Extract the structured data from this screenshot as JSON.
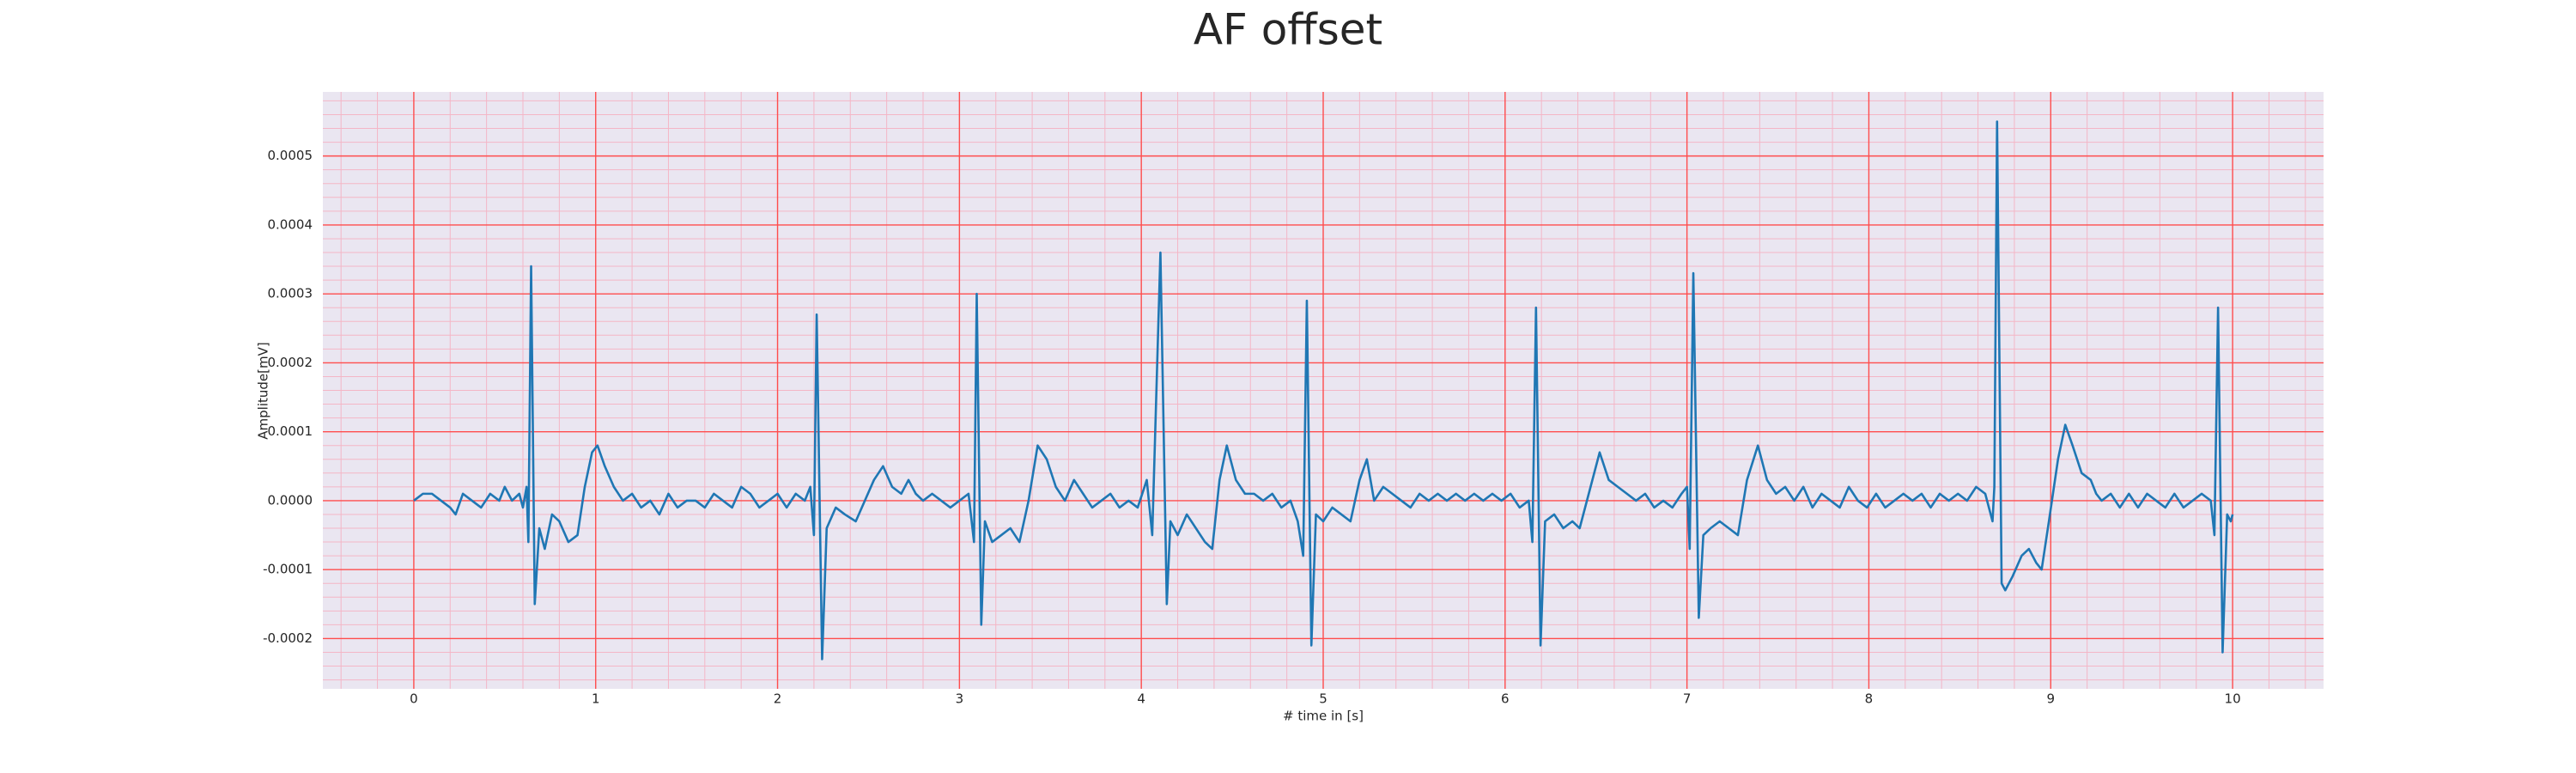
{
  "chart_data": {
    "type": "line",
    "title": "AF offset",
    "xlabel": "# time in [s]",
    "ylabel": "Amplitude[mV]",
    "grid": true,
    "minor_grid": true,
    "plot_background": "#eae6f1",
    "grid_color": "#ff4d4d",
    "minor_grid_color": "#f4b6c6",
    "xlim": [
      -0.5,
      10.5
    ],
    "ylim": [
      -0.000273,
      0.000593
    ],
    "xticks": [
      0,
      1,
      2,
      3,
      4,
      5,
      6,
      7,
      8,
      9,
      10
    ],
    "yticks": [
      {
        "value": -0.0002,
        "label": "-0.0002"
      },
      {
        "value": -0.0001,
        "label": "-0.0001"
      },
      {
        "value": 0,
        "label": "0.0000"
      },
      {
        "value": 0.0001,
        "label": "0.0001"
      },
      {
        "value": 0.0002,
        "label": "0.0002"
      },
      {
        "value": 0.0003,
        "label": "0.0003"
      },
      {
        "value": 0.0004,
        "label": "0.0004"
      },
      {
        "value": 0.0005,
        "label": "0.0005"
      }
    ],
    "xminorticks": [
      -0.4,
      -0.2,
      0.2,
      0.4,
      0.6,
      0.8,
      1.2,
      1.4,
      1.6,
      1.8,
      2.2,
      2.4,
      2.6,
      2.8,
      3.2,
      3.4,
      3.6,
      3.8,
      4.2,
      4.4,
      4.6,
      4.8,
      5.2,
      5.4,
      5.6,
      5.8,
      6.2,
      6.4,
      6.6,
      6.8,
      7.2,
      7.4,
      7.6,
      7.8,
      8.2,
      8.4,
      8.6,
      8.8,
      9.2,
      9.4,
      9.6,
      9.8,
      10.2,
      10.4
    ],
    "yminorticks": [
      -0.00026,
      -0.00024,
      -0.00022,
      -0.00018,
      -0.00016,
      -0.00014,
      -0.00012,
      -8e-05,
      -6e-05,
      -4e-05,
      -2e-05,
      2e-05,
      4e-05,
      6e-05,
      8e-05,
      0.00012,
      0.00014,
      0.00016,
      0.00018,
      0.00022,
      0.00024,
      0.00026,
      0.00028,
      0.00032,
      0.00034,
      0.00036,
      0.00038,
      0.00042,
      0.00044,
      0.00046,
      0.00048,
      0.00052,
      0.00054,
      0.00056,
      0.00058
    ],
    "x": [
      0,
      0.05,
      0.1,
      0.15,
      0.2,
      0.23,
      0.27,
      0.32,
      0.37,
      0.42,
      0.47,
      0.5,
      0.54,
      0.58,
      0.6,
      0.62,
      0.63,
      0.645,
      0.665,
      0.69,
      0.72,
      0.76,
      0.8,
      0.85,
      0.9,
      0.94,
      0.98,
      1.01,
      1.05,
      1.1,
      1.15,
      1.2,
      1.25,
      1.3,
      1.35,
      1.4,
      1.45,
      1.5,
      1.55,
      1.6,
      1.65,
      1.7,
      1.75,
      1.8,
      1.85,
      1.9,
      1.95,
      2,
      2.05,
      2.1,
      2.15,
      2.18,
      2.2,
      2.215,
      2.245,
      2.27,
      2.32,
      2.37,
      2.43,
      2.48,
      2.53,
      2.58,
      2.63,
      2.68,
      2.72,
      2.76,
      2.8,
      2.85,
      2.9,
      2.95,
      3,
      3.05,
      3.08,
      3.095,
      3.12,
      3.14,
      3.18,
      3.23,
      3.28,
      3.33,
      3.38,
      3.43,
      3.48,
      3.53,
      3.58,
      3.63,
      3.68,
      3.73,
      3.78,
      3.83,
      3.88,
      3.93,
      3.98,
      4.03,
      4.06,
      4.105,
      4.14,
      4.16,
      4.2,
      4.25,
      4.3,
      4.35,
      4.39,
      4.43,
      4.47,
      4.52,
      4.57,
      4.62,
      4.67,
      4.72,
      4.77,
      4.82,
      4.86,
      4.89,
      4.91,
      4.935,
      4.96,
      5,
      5.05,
      5.1,
      5.15,
      5.2,
      5.24,
      5.28,
      5.33,
      5.38,
      5.43,
      5.48,
      5.53,
      5.58,
      5.63,
      5.68,
      5.73,
      5.78,
      5.83,
      5.88,
      5.93,
      5.98,
      6.03,
      6.08,
      6.13,
      6.15,
      6.17,
      6.195,
      6.22,
      6.27,
      6.32,
      6.37,
      6.41,
      6.47,
      6.52,
      6.57,
      6.62,
      6.67,
      6.72,
      6.77,
      6.82,
      6.87,
      6.92,
      6.97,
      7,
      7.015,
      7.035,
      7.065,
      7.09,
      7.13,
      7.18,
      7.23,
      7.28,
      7.33,
      7.39,
      7.44,
      7.49,
      7.54,
      7.59,
      7.64,
      7.69,
      7.74,
      7.79,
      7.84,
      7.89,
      7.94,
      7.99,
      8.04,
      8.09,
      8.14,
      8.19,
      8.24,
      8.29,
      8.34,
      8.39,
      8.44,
      8.49,
      8.54,
      8.59,
      8.64,
      8.68,
      8.69,
      8.705,
      8.73,
      8.75,
      8.79,
      8.84,
      8.88,
      8.92,
      8.95,
      8.99,
      9.04,
      9.08,
      9.12,
      9.17,
      9.22,
      9.25,
      9.28,
      9.33,
      9.38,
      9.43,
      9.48,
      9.53,
      9.58,
      9.63,
      9.68,
      9.73,
      9.78,
      9.83,
      9.88,
      9.9,
      9.92,
      9.945,
      9.97,
      9.99,
      10
    ],
    "series": [
      {
        "color": "#1f77b4",
        "values": [
          0,
          1e-05,
          1e-05,
          0,
          -1e-05,
          -2e-05,
          1e-05,
          0,
          -1e-05,
          1e-05,
          0,
          2e-05,
          0,
          1e-05,
          -1e-05,
          2e-05,
          -6e-05,
          0.00034,
          -0.00015,
          -4e-05,
          -7e-05,
          -2e-05,
          -3e-05,
          -6e-05,
          -5e-05,
          2e-05,
          7e-05,
          8e-05,
          5e-05,
          2e-05,
          0,
          1e-05,
          -1e-05,
          0,
          -2e-05,
          1e-05,
          -1e-05,
          0,
          0,
          -1e-05,
          1e-05,
          0,
          -1e-05,
          2e-05,
          1e-05,
          -1e-05,
          0,
          1e-05,
          -1e-05,
          1e-05,
          0,
          2e-05,
          -5e-05,
          0.00027,
          -0.00023,
          -4e-05,
          -1e-05,
          -2e-05,
          -3e-05,
          0,
          3e-05,
          5e-05,
          2e-05,
          1e-05,
          3e-05,
          1e-05,
          0,
          1e-05,
          0,
          -1e-05,
          0,
          1e-05,
          -6e-05,
          0.0003,
          -0.00018,
          -3e-05,
          -6e-05,
          -5e-05,
          -4e-05,
          -6e-05,
          0,
          8e-05,
          6e-05,
          2e-05,
          0,
          3e-05,
          1e-05,
          -1e-05,
          0,
          1e-05,
          -1e-05,
          0,
          -1e-05,
          3e-05,
          -5e-05,
          0.00036,
          -0.00015,
          -3e-05,
          -5e-05,
          -2e-05,
          -4e-05,
          -6e-05,
          -7e-05,
          3e-05,
          8e-05,
          3e-05,
          1e-05,
          1e-05,
          0,
          1e-05,
          -1e-05,
          0,
          -3e-05,
          -8e-05,
          0.00029,
          -0.00021,
          -2e-05,
          -3e-05,
          -1e-05,
          -2e-05,
          -3e-05,
          3e-05,
          6e-05,
          0,
          2e-05,
          1e-05,
          0,
          -1e-05,
          1e-05,
          0,
          1e-05,
          0,
          1e-05,
          0,
          1e-05,
          0,
          1e-05,
          0,
          1e-05,
          -1e-05,
          0,
          -6e-05,
          0.00028,
          -0.00021,
          -3e-05,
          -2e-05,
          -4e-05,
          -3e-05,
          -4e-05,
          2e-05,
          7e-05,
          3e-05,
          2e-05,
          1e-05,
          0,
          1e-05,
          -1e-05,
          0,
          -1e-05,
          1e-05,
          2e-05,
          -7e-05,
          0.00033,
          -0.00017,
          -5e-05,
          -4e-05,
          -3e-05,
          -4e-05,
          -5e-05,
          3e-05,
          8e-05,
          3e-05,
          1e-05,
          2e-05,
          0,
          2e-05,
          -1e-05,
          1e-05,
          0,
          -1e-05,
          2e-05,
          0,
          -1e-05,
          1e-05,
          -1e-05,
          0,
          1e-05,
          0,
          1e-05,
          -1e-05,
          1e-05,
          0,
          1e-05,
          0,
          2e-05,
          1e-05,
          -3e-05,
          2e-05,
          0.00055,
          -0.00012,
          -0.00013,
          -0.00011,
          -8e-05,
          -7e-05,
          -9e-05,
          -0.0001,
          -3e-05,
          6e-05,
          0.00011,
          8e-05,
          4e-05,
          3e-05,
          1e-05,
          0,
          1e-05,
          -1e-05,
          1e-05,
          -1e-05,
          1e-05,
          0,
          -1e-05,
          1e-05,
          -1e-05,
          0,
          1e-05,
          0,
          -5e-05,
          0.00028,
          -0.00022,
          -2e-05,
          -3e-05,
          -2e-05
        ]
      }
    ]
  }
}
